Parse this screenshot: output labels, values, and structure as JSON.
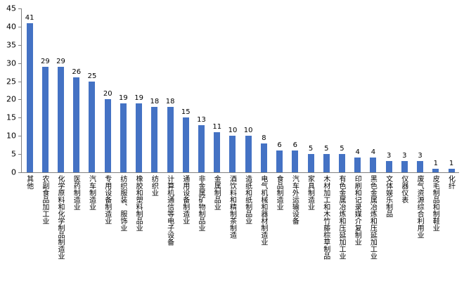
{
  "chart_data": {
    "type": "bar",
    "title": "",
    "xlabel": "",
    "ylabel": "",
    "ylim": [
      0,
      45
    ],
    "ytick_interval": 5,
    "yticks": [
      0,
      5,
      10,
      15,
      20,
      25,
      30,
      35,
      40,
      45
    ],
    "grid": false,
    "legend": false,
    "bar_color": "#4472C4",
    "axis_color": "#808080",
    "label_color": "#000000",
    "categories": [
      "其他",
      "农副食品加工业",
      "化学原料和化学制品制造业",
      "医药制造业",
      "汽车制造业",
      "专用设备制造业",
      "纺织服装、服饰业",
      "橡胶和塑料制品业",
      "纺织业",
      "计算机通信等电子设备",
      "通用设备制造业",
      "非金属矿物制品业",
      "金属制品业",
      "酒饮料和精制茶制造",
      "造纸和纸制品业",
      "电气机械和器材制造业",
      "食品制造业",
      "汽车外运输设备",
      "家具制造业",
      "木材加工和木竹藤棕草制品",
      "有色金属冶炼和压延加工业",
      "印刷和记录媒介复制业",
      "黑色金属冶炼和压延加工业",
      "文体娱乐制品",
      "仪器仪表",
      "废气资源综合利用业",
      "皮毛制品和制鞋业",
      "化纤"
    ],
    "values": [
      41,
      29,
      29,
      26,
      25,
      20,
      19,
      19,
      18,
      18,
      15,
      13,
      11,
      10,
      10,
      8,
      6,
      6,
      5,
      5,
      5,
      4,
      4,
      3,
      3,
      3,
      1,
      1
    ]
  }
}
